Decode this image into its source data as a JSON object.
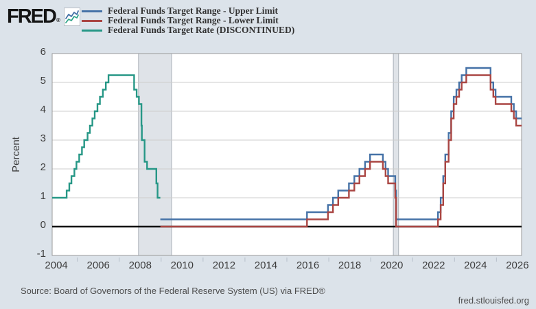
{
  "logo": {
    "text": "FRED",
    "reg": "®"
  },
  "footer": {
    "source": "Source: Board of Governors of the Federal Reserve System (US) via FRED®",
    "site_link": "fred.stlouisfed.org"
  },
  "chart_data": {
    "type": "line",
    "step": true,
    "title": "",
    "xlabel": "",
    "ylabel": "Percent",
    "ylim": [
      -1,
      6
    ],
    "xlim": [
      2003.8,
      2026.2
    ],
    "yticks": [
      -1,
      0,
      1,
      2,
      3,
      4,
      5,
      6
    ],
    "xticks": [
      2004,
      2006,
      2008,
      2010,
      2012,
      2014,
      2016,
      2018,
      2020,
      2022,
      2024,
      2026
    ],
    "minor_xticks": [
      2005,
      2007,
      2009,
      2011,
      2013,
      2015,
      2017,
      2019,
      2021,
      2023,
      2025
    ],
    "grid": true,
    "legend_position": "top",
    "page_background": "#dce3ea",
    "plot_background": "#ffffff",
    "grid_color": "#cccccc",
    "border_color": "#999999",
    "zero_line_color": "#000000",
    "tick_label_color": "#3d3d3d",
    "band_fill": "#dfe3e8",
    "band_edge": "#a9afb7",
    "recession_bands": [
      {
        "from": 2007.92,
        "to": 2009.5
      },
      {
        "from": 2020.08,
        "to": 2020.33
      }
    ],
    "series": [
      {
        "name": "Federal Funds Target Range - Upper Limit",
        "color": "#4572a7",
        "end_x": 2026.2,
        "points": [
          [
            2008.96,
            0.25
          ],
          [
            2015.96,
            0.5
          ],
          [
            2016.96,
            0.75
          ],
          [
            2017.2,
            1.0
          ],
          [
            2017.45,
            1.25
          ],
          [
            2017.96,
            1.5
          ],
          [
            2018.22,
            1.75
          ],
          [
            2018.46,
            2.0
          ],
          [
            2018.73,
            2.25
          ],
          [
            2018.97,
            2.5
          ],
          [
            2019.58,
            2.25
          ],
          [
            2019.71,
            2.0
          ],
          [
            2019.83,
            1.75
          ],
          [
            2020.17,
            1.25
          ],
          [
            2020.21,
            0.25
          ],
          [
            2022.21,
            0.5
          ],
          [
            2022.34,
            1.0
          ],
          [
            2022.46,
            1.75
          ],
          [
            2022.56,
            2.5
          ],
          [
            2022.72,
            3.25
          ],
          [
            2022.84,
            4.0
          ],
          [
            2022.96,
            4.5
          ],
          [
            2023.09,
            4.75
          ],
          [
            2023.22,
            5.0
          ],
          [
            2023.34,
            5.25
          ],
          [
            2023.56,
            5.5
          ],
          [
            2024.72,
            5.0
          ],
          [
            2024.85,
            4.75
          ],
          [
            2024.96,
            4.5
          ],
          [
            2025.71,
            4.25
          ],
          [
            2025.83,
            4.0
          ],
          [
            2025.94,
            3.75
          ]
        ]
      },
      {
        "name": "Federal Funds Target Range - Lower Limit",
        "color": "#aa4643",
        "end_x": 2026.2,
        "points": [
          [
            2008.96,
            0.0
          ],
          [
            2015.96,
            0.25
          ],
          [
            2016.96,
            0.5
          ],
          [
            2017.2,
            0.75
          ],
          [
            2017.45,
            1.0
          ],
          [
            2017.96,
            1.25
          ],
          [
            2018.22,
            1.5
          ],
          [
            2018.46,
            1.75
          ],
          [
            2018.73,
            2.0
          ],
          [
            2018.97,
            2.25
          ],
          [
            2019.58,
            2.0
          ],
          [
            2019.71,
            1.75
          ],
          [
            2019.83,
            1.5
          ],
          [
            2020.17,
            1.0
          ],
          [
            2020.21,
            0.0
          ],
          [
            2022.21,
            0.25
          ],
          [
            2022.34,
            0.75
          ],
          [
            2022.46,
            1.5
          ],
          [
            2022.56,
            2.25
          ],
          [
            2022.72,
            3.0
          ],
          [
            2022.84,
            3.75
          ],
          [
            2022.96,
            4.25
          ],
          [
            2023.09,
            4.5
          ],
          [
            2023.22,
            4.75
          ],
          [
            2023.34,
            5.0
          ],
          [
            2023.56,
            5.25
          ],
          [
            2024.72,
            4.75
          ],
          [
            2024.85,
            4.5
          ],
          [
            2024.96,
            4.25
          ],
          [
            2025.71,
            4.0
          ],
          [
            2025.83,
            3.75
          ],
          [
            2025.94,
            3.5
          ]
        ]
      },
      {
        "name": "Federal Funds Target Rate (DISCONTINUED)",
        "color": "#269786",
        "end_x": 2008.96,
        "points": [
          [
            2003.8,
            1.0
          ],
          [
            2004.49,
            1.25
          ],
          [
            2004.62,
            1.5
          ],
          [
            2004.72,
            1.75
          ],
          [
            2004.86,
            2.0
          ],
          [
            2004.96,
            2.25
          ],
          [
            2005.09,
            2.5
          ],
          [
            2005.22,
            2.75
          ],
          [
            2005.33,
            3.0
          ],
          [
            2005.49,
            3.25
          ],
          [
            2005.6,
            3.5
          ],
          [
            2005.72,
            3.75
          ],
          [
            2005.83,
            4.0
          ],
          [
            2005.96,
            4.25
          ],
          [
            2006.08,
            4.5
          ],
          [
            2006.22,
            4.75
          ],
          [
            2006.36,
            5.0
          ],
          [
            2006.49,
            5.25
          ],
          [
            2007.71,
            4.75
          ],
          [
            2007.83,
            4.5
          ],
          [
            2007.94,
            4.25
          ],
          [
            2008.06,
            3.5
          ],
          [
            2008.08,
            3.0
          ],
          [
            2008.21,
            2.25
          ],
          [
            2008.33,
            2.0
          ],
          [
            2008.77,
            1.5
          ],
          [
            2008.83,
            1.0
          ]
        ]
      }
    ]
  }
}
